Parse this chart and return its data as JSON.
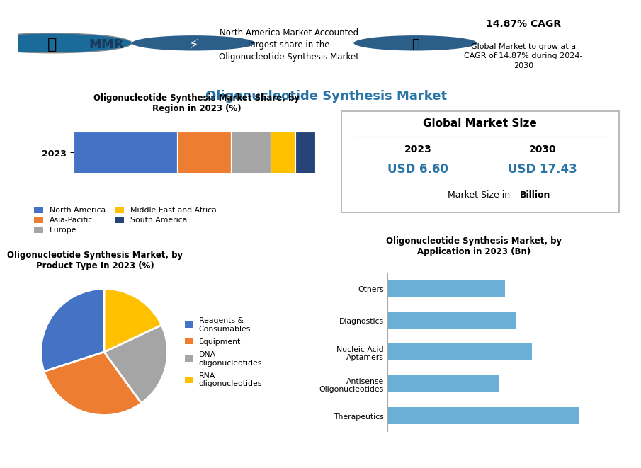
{
  "main_title": "Oligonucleotide Synthesis Market",
  "header_text1_line1": "North America Market Accounted",
  "header_text1_line2": "largest share in the",
  "header_text1_line3": "Oligonucleotide Synthesis Market",
  "header_cagr_bold": "14.87% CAGR",
  "header_cagr_text": "Global Market to grow at a\nCAGR of 14.87% during 2024-\n2030",
  "bar_title": "Oligonucleotide Synthesis Market Share, by\nRegion in 2023 (%)",
  "bar_label": "2023",
  "bar_segments": [
    {
      "label": "North America",
      "value": 42,
      "color": "#4472C4"
    },
    {
      "label": "Asia-Pacific",
      "value": 22,
      "color": "#ED7D31"
    },
    {
      "label": "Europe",
      "value": 16,
      "color": "#A5A5A5"
    },
    {
      "label": "Middle East and Africa",
      "value": 10,
      "color": "#FFC000"
    },
    {
      "label": "South America",
      "value": 8,
      "color": "#264478"
    }
  ],
  "market_size_title": "Global Market Size",
  "market_size_year1": "2023",
  "market_size_year2": "2030",
  "market_size_val1": "USD 6.60",
  "market_size_val2": "USD 17.43",
  "market_size_note_pre": "Market Size in ",
  "market_size_note_bold": "Billion",
  "pie_title": "Oligonucleotide Synthesis Market, by\nProduct Type In 2023 (%)",
  "pie_slices": [
    {
      "label": "Reagents &\nConsumables",
      "value": 30,
      "color": "#4472C4"
    },
    {
      "label": "Equipment",
      "value": 30,
      "color": "#ED7D31"
    },
    {
      "label": "DNA\noligonucleotides",
      "value": 22,
      "color": "#A5A5A5"
    },
    {
      "label": "RNA\noligonucleotides",
      "value": 18,
      "color": "#FFC000"
    }
  ],
  "bar2_title": "Oligonucleotide Synthesis Market, by\nApplication in 2023 (Bn)",
  "bar2_categories": [
    "Therapeutics",
    "Antisense\nOligonucleotides",
    "Nucleic Acid\nAptamers",
    "Diagnostics",
    "Others"
  ],
  "bar2_values": [
    1.8,
    1.05,
    1.35,
    1.2,
    1.1
  ],
  "bar2_color": "#6BAED6",
  "bg_color": "#FFFFFF",
  "header_bg": "#EFEFEF"
}
